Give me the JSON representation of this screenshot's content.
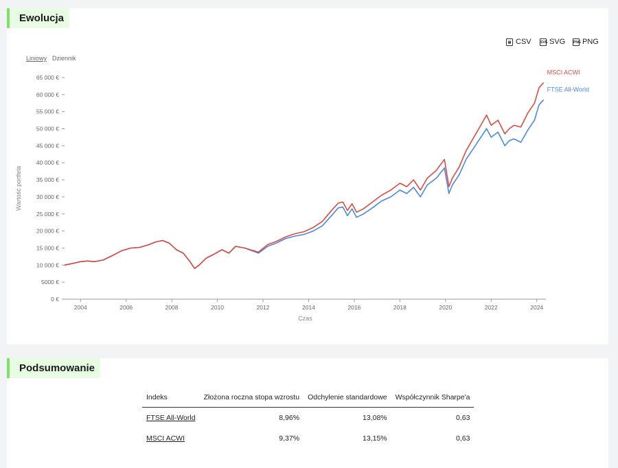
{
  "evolution": {
    "title": "Ewolucja",
    "exports": [
      {
        "label": "CSV",
        "icon": "csv-icon"
      },
      {
        "label": "SVG",
        "icon": "svg-icon"
      },
      {
        "label": "PNG",
        "icon": "png-icon"
      }
    ],
    "scale_toggle": {
      "linear": "Liniowy",
      "log": "Dziennik",
      "active": "linear"
    }
  },
  "chart_data": {
    "type": "line",
    "title": "",
    "xlabel": "Czas",
    "ylabel": "Wartość portfela",
    "ylim": [
      0,
      65000
    ],
    "xlim": [
      2003.3,
      2024.4
    ],
    "yticks": [
      "0 €",
      "5000 €",
      "10 000 €",
      "15 000 €",
      "20 000 €",
      "25 000 €",
      "30 000 €",
      "35 000 €",
      "40 000 €",
      "45 000 €",
      "50 000 €",
      "55 000 €",
      "60 000 €",
      "65 000 €"
    ],
    "ytick_values": [
      0,
      5000,
      10000,
      15000,
      20000,
      25000,
      30000,
      35000,
      40000,
      45000,
      50000,
      55000,
      60000,
      65000
    ],
    "xticks": [
      "2004",
      "2006",
      "2008",
      "2010",
      "2012",
      "2014",
      "2016",
      "2018",
      "2020",
      "2022",
      "2024"
    ],
    "xtick_values": [
      2004,
      2006,
      2008,
      2010,
      2012,
      2014,
      2016,
      2018,
      2020,
      2022,
      2024
    ],
    "grid": false,
    "series": [
      {
        "name": "FTSE All-World",
        "color": "#4a86e8",
        "x": [
          2003.3,
          2003.6,
          2004.0,
          2004.3,
          2004.6,
          2005.0,
          2005.4,
          2005.8,
          2006.2,
          2006.6,
          2007.0,
          2007.3,
          2007.6,
          2007.9,
          2008.2,
          2008.5,
          2008.8,
          2009.0,
          2009.2,
          2009.5,
          2009.8,
          2010.2,
          2010.5,
          2010.8,
          2011.2,
          2011.6,
          2011.8,
          2012.2,
          2012.6,
          2013.0,
          2013.4,
          2013.8,
          2014.2,
          2014.6,
          2015.0,
          2015.3,
          2015.5,
          2015.7,
          2015.9,
          2016.1,
          2016.4,
          2016.8,
          2017.2,
          2017.6,
          2018.0,
          2018.3,
          2018.6,
          2018.9,
          2019.2,
          2019.6,
          2019.95,
          2020.15,
          2020.3,
          2020.6,
          2020.9,
          2021.2,
          2021.5,
          2021.8,
          2022.0,
          2022.3,
          2022.6,
          2022.8,
          2023.0,
          2023.3,
          2023.6,
          2023.9,
          2024.1,
          2024.3
        ],
        "values": [
          10000,
          10400,
          11000,
          11200,
          11000,
          11500,
          12800,
          14200,
          15000,
          15200,
          16000,
          16800,
          17200,
          16400,
          14500,
          13500,
          11000,
          9000,
          10000,
          12000,
          13000,
          14500,
          13500,
          15500,
          15000,
          14000,
          13500,
          15500,
          16500,
          17800,
          18500,
          19000,
          20000,
          21500,
          24500,
          26800,
          27000,
          24500,
          26500,
          24000,
          25000,
          26800,
          28800,
          30000,
          32000,
          31000,
          32800,
          30000,
          33500,
          35500,
          38500,
          31000,
          33500,
          36500,
          41000,
          44000,
          47000,
          50000,
          47500,
          49000,
          45000,
          46500,
          47000,
          46000,
          49500,
          52500,
          57000,
          58500
        ]
      },
      {
        "name": "MSCI ACWI",
        "color": "#d94b3f",
        "x": [
          2003.3,
          2003.6,
          2004.0,
          2004.3,
          2004.6,
          2005.0,
          2005.4,
          2005.8,
          2006.2,
          2006.6,
          2007.0,
          2007.3,
          2007.6,
          2007.9,
          2008.2,
          2008.5,
          2008.8,
          2009.0,
          2009.2,
          2009.5,
          2009.8,
          2010.2,
          2010.5,
          2010.8,
          2011.2,
          2011.6,
          2011.8,
          2012.2,
          2012.6,
          2013.0,
          2013.4,
          2013.8,
          2014.2,
          2014.6,
          2015.0,
          2015.3,
          2015.5,
          2015.7,
          2015.9,
          2016.1,
          2016.4,
          2016.8,
          2017.2,
          2017.6,
          2018.0,
          2018.3,
          2018.6,
          2018.9,
          2019.2,
          2019.6,
          2019.95,
          2020.15,
          2020.3,
          2020.6,
          2020.9,
          2021.2,
          2021.5,
          2021.8,
          2022.0,
          2022.3,
          2022.6,
          2022.8,
          2023.0,
          2023.3,
          2023.6,
          2023.9,
          2024.1,
          2024.3
        ],
        "values": [
          10000,
          10400,
          11000,
          11200,
          11000,
          11500,
          12800,
          14200,
          15000,
          15200,
          16000,
          16800,
          17200,
          16400,
          14500,
          13500,
          11000,
          9000,
          10000,
          12000,
          13000,
          14500,
          13500,
          15500,
          15000,
          14200,
          13800,
          16000,
          17000,
          18300,
          19200,
          19800,
          21000,
          22800,
          26000,
          28200,
          28500,
          26000,
          28000,
          25500,
          26500,
          28500,
          30500,
          32000,
          34000,
          33000,
          35000,
          32000,
          35500,
          37800,
          41000,
          33000,
          35500,
          38800,
          43500,
          47000,
          50500,
          54000,
          51000,
          52500,
          48500,
          50000,
          51000,
          50500,
          54500,
          57500,
          62000,
          63500
        ]
      }
    ]
  },
  "summary": {
    "title": "Podsumowanie",
    "columns": [
      "Indeks",
      "Złożona roczna stopa wzrostu",
      "Odchylenie standardowe",
      "Współczynnik Sharpe'a"
    ],
    "rows": [
      [
        "FTSE All-World",
        "8,96%",
        "13,08%",
        "0,63"
      ],
      [
        "MSCI ACWI",
        "9,37%",
        "13,15%",
        "0,63"
      ]
    ]
  }
}
